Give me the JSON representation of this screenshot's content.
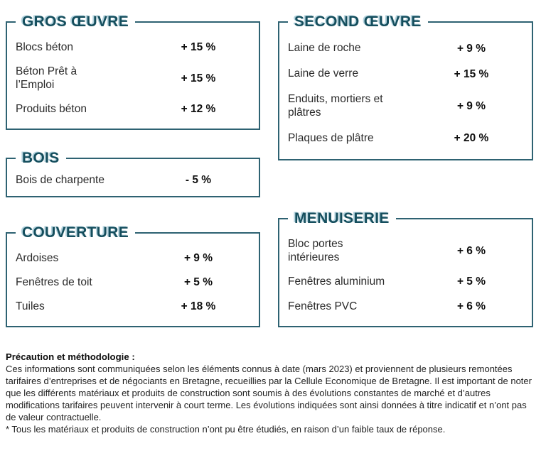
{
  "palette": {
    "accent_teal": "#154e5d",
    "border_teal": "#2e6272",
    "title_shadow_blue": "#b4d3de",
    "label_text": "#2a2a2a",
    "value_text": "#0f0f0f"
  },
  "sections": [
    {
      "id": "gros-oeuvre",
      "title": "GROS ŒUVRE",
      "items": [
        {
          "label": "Blocs béton",
          "change": "+ 15 %"
        },
        {
          "label": "Béton Prêt à\nl’Emploi",
          "change": "+ 15 %"
        },
        {
          "label": "Produits béton",
          "change": "+ 12 %"
        }
      ]
    },
    {
      "id": "second-oeuvre",
      "title": "SECOND ŒUVRE",
      "items": [
        {
          "label": "Laine de roche",
          "change": "+ 9 %"
        },
        {
          "label": "Laine de verre",
          "change": "+ 15 %"
        },
        {
          "label": "Enduits, mortiers et\nplâtres",
          "change": "+ 9 %"
        },
        {
          "label": "Plaques de plâtre",
          "change": "+ 20 %"
        }
      ]
    },
    {
      "id": "bois",
      "title": "BOIS",
      "items": [
        {
          "label": "Bois de charpente",
          "change": "- 5 %"
        }
      ]
    },
    {
      "id": "couverture",
      "title": "COUVERTURE",
      "items": [
        {
          "label": "Ardoises",
          "change": "+ 9 %"
        },
        {
          "label": "Fenêtres de toit",
          "change": "+ 5 %"
        },
        {
          "label": "Tuiles",
          "change": "+ 18 %"
        }
      ]
    },
    {
      "id": "menuiserie",
      "title": "MENUISERIE",
      "items": [
        {
          "label": "Bloc portes\nintérieures",
          "change": "+ 6 %"
        },
        {
          "label": "Fenêtres aluminium",
          "change": "+ 5 %"
        },
        {
          "label": "Fenêtres PVC",
          "change": "+ 6 %"
        }
      ]
    }
  ],
  "footer": {
    "heading": "Précaution et méthodologie :",
    "body": "Ces informations sont communiquées selon les éléments connus à date (mars 2023) et proviennent de plusieurs remontées tarifaires d’entreprises et de négociants en Bretagne, recueillies par la Cellule Economique de Bretagne. Il est important de noter que les différents matériaux et produits de construction sont soumis à des évolutions constantes de marché et d’autres modifications tarifaires peuvent intervenir à court terme. Les évolutions indiquées sont ainsi données à titre indicatif et n’ont pas de valeur contractuelle.",
    "footnote": "* Tous les matériaux et produits de construction n’ont pu être étudiés, en raison d’un faible taux de réponse."
  }
}
